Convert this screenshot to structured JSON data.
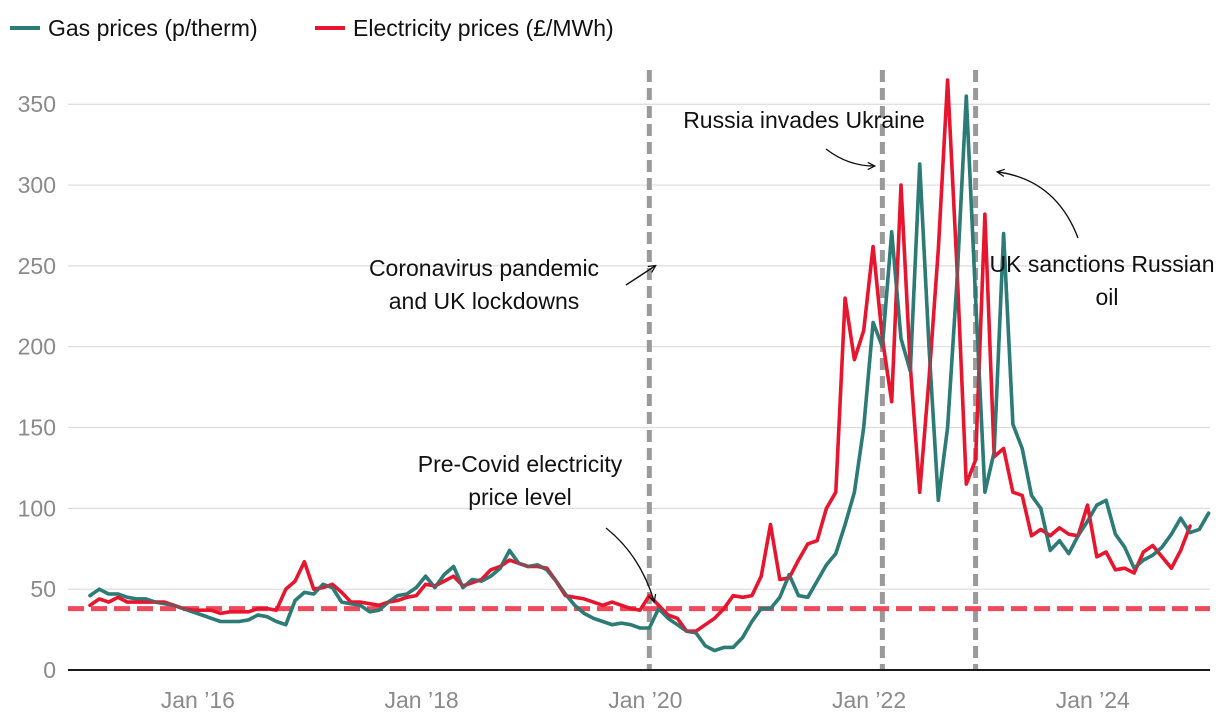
{
  "chart_data": {
    "type": "line",
    "title": "",
    "xlabel": "",
    "ylabel": "",
    "ylim": [
      0,
      365
    ],
    "yticks": [
      0,
      50,
      100,
      150,
      200,
      250,
      300,
      350
    ],
    "xrange": [
      "2015-01",
      "2024-11"
    ],
    "xticks": [
      {
        "label": "Jan ’16",
        "date": "2016-01"
      },
      {
        "label": "Jan ’18",
        "date": "2018-01"
      },
      {
        "label": "Jan ’20",
        "date": "2020-01"
      },
      {
        "label": "Jan ’22",
        "date": "2022-01"
      },
      {
        "label": "Jan ’24",
        "date": "2024-01"
      }
    ],
    "grid": true,
    "legend": "top-left",
    "series": [
      {
        "name": "Gas prices (p/therm)",
        "color": "#2e7b76",
        "start": "2015-01",
        "values": [
          46,
          50,
          47,
          47,
          45,
          44,
          44,
          42,
          41,
          40,
          38,
          36,
          34,
          32,
          30,
          30,
          30,
          31,
          34,
          33,
          30,
          28,
          43,
          48,
          47,
          53,
          51,
          42,
          41,
          40,
          36,
          37,
          42,
          46,
          47,
          51,
          58,
          51,
          59,
          64,
          51,
          56,
          55,
          58,
          63,
          74,
          66,
          64,
          65,
          62,
          55,
          47,
          40,
          35,
          32,
          30,
          28,
          29,
          28,
          26,
          26,
          38,
          32,
          28,
          24,
          23,
          15,
          12,
          14,
          14,
          20,
          30,
          38,
          38,
          45,
          59,
          46,
          45,
          55,
          65,
          72,
          90,
          110,
          150,
          215,
          200,
          271,
          205,
          185,
          313,
          200,
          105,
          150,
          240,
          355,
          230,
          110,
          135,
          270,
          152,
          137,
          108,
          100,
          74,
          80,
          72,
          83,
          92,
          102,
          105,
          84,
          76,
          63,
          68,
          71,
          76,
          84,
          94,
          85,
          87,
          97
        ]
      },
      {
        "name": "Electricity prices (£/MWh)",
        "color": "#e8152e",
        "start": "2015-01",
        "values": [
          40,
          44,
          42,
          45,
          42,
          42,
          42,
          42,
          42,
          40,
          38,
          37,
          37,
          37,
          35,
          36,
          36,
          36,
          38,
          38,
          37,
          50,
          55,
          67,
          50,
          51,
          53,
          48,
          42,
          42,
          41,
          40,
          42,
          43,
          45,
          46,
          53,
          52,
          55,
          58,
          52,
          54,
          56,
          62,
          64,
          68,
          66,
          64,
          64,
          63,
          55,
          46,
          45,
          44,
          42,
          40,
          42,
          40,
          38,
          37,
          46,
          40,
          34,
          32,
          24,
          24,
          28,
          32,
          38,
          46,
          45,
          46,
          58,
          90,
          56,
          57,
          68,
          78,
          80,
          100,
          110,
          230,
          192,
          210,
          262,
          205,
          166,
          300,
          188,
          110,
          180,
          260,
          365,
          250,
          115,
          130,
          282,
          132,
          137,
          110,
          108,
          83,
          87,
          83,
          88,
          84,
          83,
          102,
          70,
          73,
          62,
          63,
          60,
          73,
          77,
          70,
          63,
          74,
          89
        ]
      }
    ],
    "reference_line": {
      "name": "Pre-Covid electricity price level",
      "value": 38,
      "color": "#ee4a5c"
    },
    "vertical_markers": [
      {
        "date": "2020-01"
      },
      {
        "date": "2022-02"
      },
      {
        "date": "2022-12"
      }
    ],
    "annotations": [
      {
        "lines": [
          "Coronavirus pandemic",
          "and UK lockdowns"
        ]
      },
      {
        "lines": [
          "Russia invades Ukraine"
        ]
      },
      {
        "lines": [
          "UK sanctions Russian",
          "oil"
        ]
      },
      {
        "lines": [
          "Pre-Covid electricity",
          "price level"
        ]
      }
    ]
  }
}
